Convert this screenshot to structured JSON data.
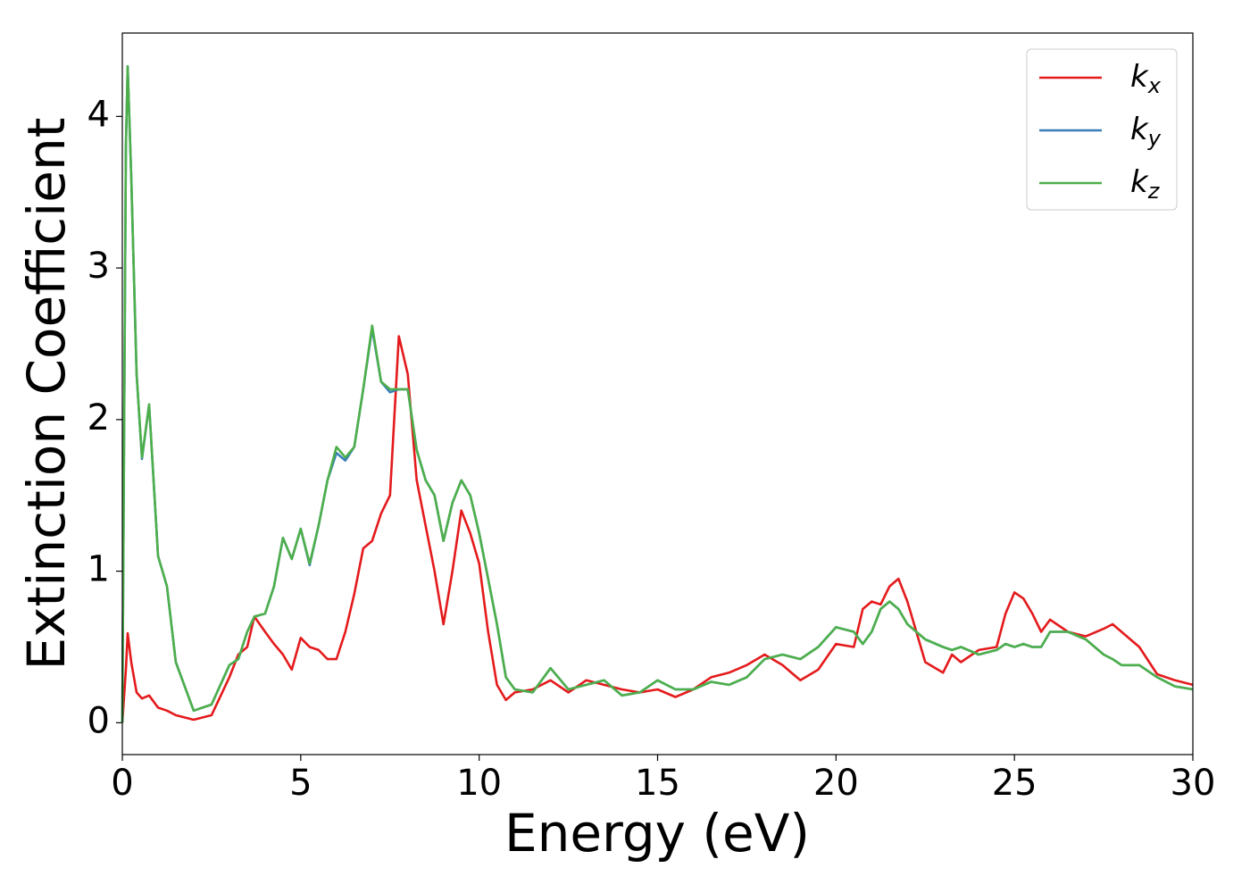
{
  "chart_data": {
    "type": "line",
    "xlabel": "Energy (eV)",
    "ylabel": "Extinction Coefficient",
    "x": [
      0,
      0.1,
      0.15,
      0.25,
      0.4,
      0.55,
      0.75,
      1,
      1.25,
      1.5,
      2,
      2.5,
      3,
      3.25,
      3.5,
      3.7,
      4,
      4.25,
      4.5,
      4.75,
      5,
      5.25,
      5.5,
      5.75,
      6,
      6.25,
      6.5,
      6.75,
      7,
      7.25,
      7.5,
      7.75,
      8,
      8.25,
      8.5,
      8.75,
      9,
      9.25,
      9.5,
      9.75,
      10,
      10.25,
      10.5,
      10.75,
      11,
      11.5,
      12,
      12.5,
      13,
      13.5,
      14,
      14.5,
      15,
      15.5,
      16,
      16.5,
      17,
      17.5,
      18,
      18.5,
      19,
      19.5,
      20,
      20.5,
      20.75,
      21,
      21.25,
      21.5,
      21.75,
      22,
      22.25,
      22.5,
      23,
      23.25,
      23.5,
      24,
      24.5,
      24.75,
      25,
      25.25,
      25.5,
      25.75,
      26,
      26.5,
      27,
      27.5,
      27.75,
      28,
      28.5,
      29,
      29.5,
      30
    ],
    "series": [
      {
        "name": "k_x",
        "color": "#e41a1c",
        "values": [
          0,
          0.35,
          0.59,
          0.4,
          0.2,
          0.16,
          0.18,
          0.1,
          0.08,
          0.05,
          0.02,
          0.05,
          0.3,
          0.45,
          0.5,
          0.7,
          0.6,
          0.52,
          0.45,
          0.35,
          0.56,
          0.5,
          0.48,
          0.42,
          0.42,
          0.6,
          0.85,
          1.15,
          1.2,
          1.38,
          1.5,
          2.55,
          2.3,
          1.6,
          1.3,
          1.0,
          0.65,
          1.0,
          1.4,
          1.25,
          1.05,
          0.6,
          0.25,
          0.15,
          0.2,
          0.22,
          0.28,
          0.2,
          0.28,
          0.25,
          0.22,
          0.2,
          0.22,
          0.17,
          0.22,
          0.3,
          0.33,
          0.38,
          0.45,
          0.38,
          0.28,
          0.35,
          0.52,
          0.5,
          0.75,
          0.8,
          0.78,
          0.9,
          0.95,
          0.8,
          0.6,
          0.4,
          0.33,
          0.45,
          0.4,
          0.48,
          0.5,
          0.72,
          0.86,
          0.82,
          0.72,
          0.6,
          0.68,
          0.6,
          0.57,
          0.62,
          0.65,
          0.6,
          0.5,
          0.32,
          0.28,
          0.25
        ]
      },
      {
        "name": "k_y",
        "color": "#377eb8",
        "values": [
          0,
          3.8,
          4.33,
          3.6,
          2.3,
          1.74,
          2.1,
          1.1,
          0.9,
          0.4,
          0.08,
          0.12,
          0.38,
          0.42,
          0.6,
          0.7,
          0.72,
          0.9,
          1.22,
          1.08,
          1.28,
          1.04,
          1.3,
          1.6,
          1.78,
          1.73,
          1.82,
          2.2,
          2.6,
          2.25,
          2.18,
          2.2,
          2.2,
          1.8,
          1.6,
          1.5,
          1.2,
          1.45,
          1.6,
          1.5,
          1.25,
          0.95,
          0.65,
          0.3,
          0.22,
          0.2,
          0.36,
          0.22,
          0.25,
          0.28,
          0.18,
          0.2,
          0.28,
          0.22,
          0.22,
          0.27,
          0.25,
          0.3,
          0.42,
          0.45,
          0.42,
          0.5,
          0.63,
          0.6,
          0.52,
          0.6,
          0.75,
          0.8,
          0.75,
          0.65,
          0.6,
          0.55,
          0.5,
          0.48,
          0.5,
          0.45,
          0.48,
          0.52,
          0.5,
          0.52,
          0.5,
          0.5,
          0.6,
          0.6,
          0.55,
          0.45,
          0.42,
          0.38,
          0.38,
          0.3,
          0.24,
          0.22
        ]
      },
      {
        "name": "k_z",
        "color": "#4daf4a",
        "values": [
          0,
          3.8,
          4.33,
          3.6,
          2.3,
          1.75,
          2.1,
          1.1,
          0.9,
          0.4,
          0.08,
          0.12,
          0.38,
          0.42,
          0.6,
          0.7,
          0.72,
          0.9,
          1.22,
          1.08,
          1.28,
          1.05,
          1.3,
          1.6,
          1.82,
          1.75,
          1.82,
          2.2,
          2.62,
          2.25,
          2.2,
          2.2,
          2.2,
          1.8,
          1.6,
          1.5,
          1.2,
          1.45,
          1.6,
          1.5,
          1.25,
          0.95,
          0.65,
          0.3,
          0.22,
          0.2,
          0.36,
          0.22,
          0.25,
          0.28,
          0.18,
          0.2,
          0.28,
          0.22,
          0.22,
          0.27,
          0.25,
          0.3,
          0.42,
          0.45,
          0.42,
          0.5,
          0.63,
          0.6,
          0.52,
          0.6,
          0.75,
          0.8,
          0.75,
          0.65,
          0.6,
          0.55,
          0.5,
          0.48,
          0.5,
          0.45,
          0.48,
          0.52,
          0.5,
          0.52,
          0.5,
          0.5,
          0.6,
          0.6,
          0.55,
          0.45,
          0.42,
          0.38,
          0.38,
          0.3,
          0.24,
          0.22
        ]
      }
    ],
    "xlim": [
      0,
      30
    ],
    "xticks": [
      0,
      5,
      10,
      15,
      20,
      25,
      30
    ],
    "ylim": [
      -0.21,
      4.55
    ],
    "yticks": [
      0,
      1,
      2,
      3,
      4
    ],
    "grid": false,
    "legend": "upper right"
  }
}
